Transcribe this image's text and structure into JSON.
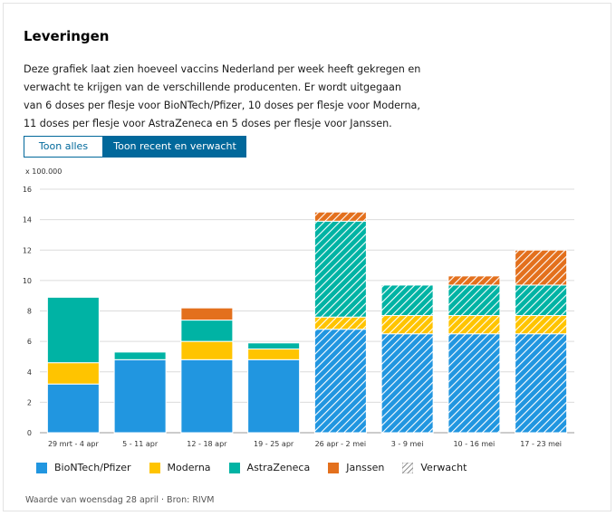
{
  "title": "Leveringen",
  "description": "Deze grafiek laat zien hoeveel vaccins Nederland per week heeft gekregen en verwacht te krijgen van de verschillende producenten. Er wordt uitgegaan van 6 doses per flesje voor BioNTech/Pfizer, 10 doses per flesje voor Moderna, 11 doses per flesje voor AstraZeneca en 5 doses per flesje voor Janssen.",
  "toggle": {
    "all_label": "Toon alles",
    "recent_label": "Toon recent en verwacht"
  },
  "unit_label": "x 100.000",
  "source": "Waarde van woensdag 28 april · Bron: RIVM",
  "colors": {
    "BioNTech/Pfizer": "#2196e0",
    "Moderna": "#ffc400",
    "AstraZeneca": "#00b3a4",
    "Janssen": "#e3701d"
  },
  "chart_data": {
    "type": "bar",
    "stacked": true,
    "categories": [
      "29 mrt - 4 apr",
      "5 - 11 apr",
      "12 - 18 apr",
      "19 - 25 apr",
      "26 apr - 2 mei",
      "3 - 9 mei",
      "10 - 16 mei",
      "17 - 23 mei"
    ],
    "expected": [
      false,
      false,
      false,
      false,
      true,
      true,
      true,
      true
    ],
    "series": [
      {
        "name": "BioNTech/Pfizer",
        "values": [
          3.2,
          4.8,
          4.8,
          4.8,
          6.8,
          6.5,
          6.5,
          6.5
        ]
      },
      {
        "name": "Moderna",
        "values": [
          1.4,
          0,
          1.2,
          0.7,
          0.8,
          1.2,
          1.2,
          1.2
        ]
      },
      {
        "name": "AstraZeneca",
        "values": [
          4.3,
          0.5,
          1.4,
          0.4,
          6.3,
          2.0,
          2.0,
          2.0
        ]
      },
      {
        "name": "Janssen",
        "values": [
          0,
          0,
          0.8,
          0,
          0.6,
          0,
          0.6,
          2.3
        ]
      }
    ],
    "ylim": [
      0,
      16
    ],
    "yticks": [
      0,
      2,
      4,
      6,
      8,
      10,
      12,
      14,
      16
    ],
    "legend": [
      "BioNTech/Pfizer",
      "Moderna",
      "AstraZeneca",
      "Janssen",
      "Verwacht"
    ]
  }
}
